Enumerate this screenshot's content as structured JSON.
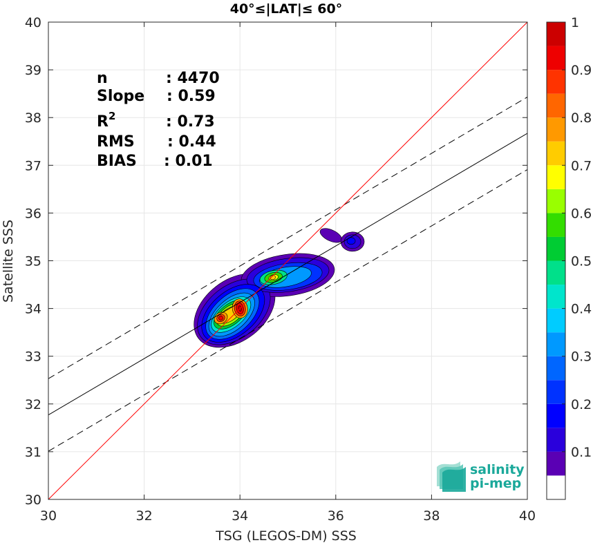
{
  "chart_data": {
    "type": "heatmap",
    "title": "40°≤|LAT|≤ 60°",
    "xlabel": "TSG (LEGOS-DM) SSS",
    "ylabel": "Satellite SSS",
    "xlim": [
      30,
      40
    ],
    "ylim": [
      30,
      40
    ],
    "xticks": [
      "30",
      "32",
      "34",
      "36",
      "38",
      "40"
    ],
    "yticks": [
      "30",
      "31",
      "32",
      "33",
      "34",
      "35",
      "36",
      "37",
      "38",
      "39",
      "40"
    ],
    "grid": true,
    "stats": [
      {
        "label": "n",
        "sep": ": ",
        "value": "4470"
      },
      {
        "label": "Slope",
        "sep": ": ",
        "value": "0.59"
      },
      {
        "label": "R",
        "sup": "2",
        "sep": ": ",
        "value": "0.73"
      },
      {
        "label": "RMS",
        "sep": ": ",
        "value": "0.44"
      },
      {
        "label": "BIAS",
        "sep": ": ",
        "value": "0.01"
      }
    ],
    "lines": {
      "one_to_one": {
        "slope": 1,
        "intercept": 0,
        "color": "#ff0000"
      },
      "regression": {
        "slope": 0.59,
        "intercept": 14.07,
        "color": "#000000"
      },
      "bounds_offset": 0.76
    },
    "colorbar": {
      "ticks": [
        "0.1",
        "0.2",
        "0.3",
        "0.4",
        "0.5",
        "0.6",
        "0.7",
        "0.8",
        "0.9",
        "1"
      ],
      "levels": [
        0,
        0.05,
        0.1,
        0.15,
        0.2,
        0.25,
        0.3,
        0.35,
        0.4,
        0.45,
        0.5,
        0.55,
        0.6,
        0.65,
        0.7,
        0.75,
        0.8,
        0.85,
        0.9,
        0.95,
        1.0
      ],
      "colors": [
        "#ffffff",
        "#5a00b4",
        "#2a00dc",
        "#0000ff",
        "#0032ff",
        "#0066ff",
        "#0099ff",
        "#00ccff",
        "#00e5cc",
        "#00e08a",
        "#00cc33",
        "#33dd00",
        "#99ff00",
        "#ffff00",
        "#ffcc00",
        "#ff9900",
        "#ff6600",
        "#ff3300",
        "#ee0000",
        "#cc0000",
        "#880000"
      ]
    },
    "density_peaks": [
      {
        "x": 33.6,
        "y": 33.8,
        "value": 0.9
      },
      {
        "x": 34.0,
        "y": 34.0,
        "value": 0.95
      },
      {
        "x": 34.7,
        "y": 34.65,
        "value": 0.7
      },
      {
        "x": 36.35,
        "y": 35.4,
        "value": 0.15
      }
    ]
  },
  "logo": {
    "line1": "salinity",
    "line2": "pi-mep",
    "colors": [
      "#1aa89a",
      "#5cc8b8",
      "#9adccf"
    ]
  }
}
